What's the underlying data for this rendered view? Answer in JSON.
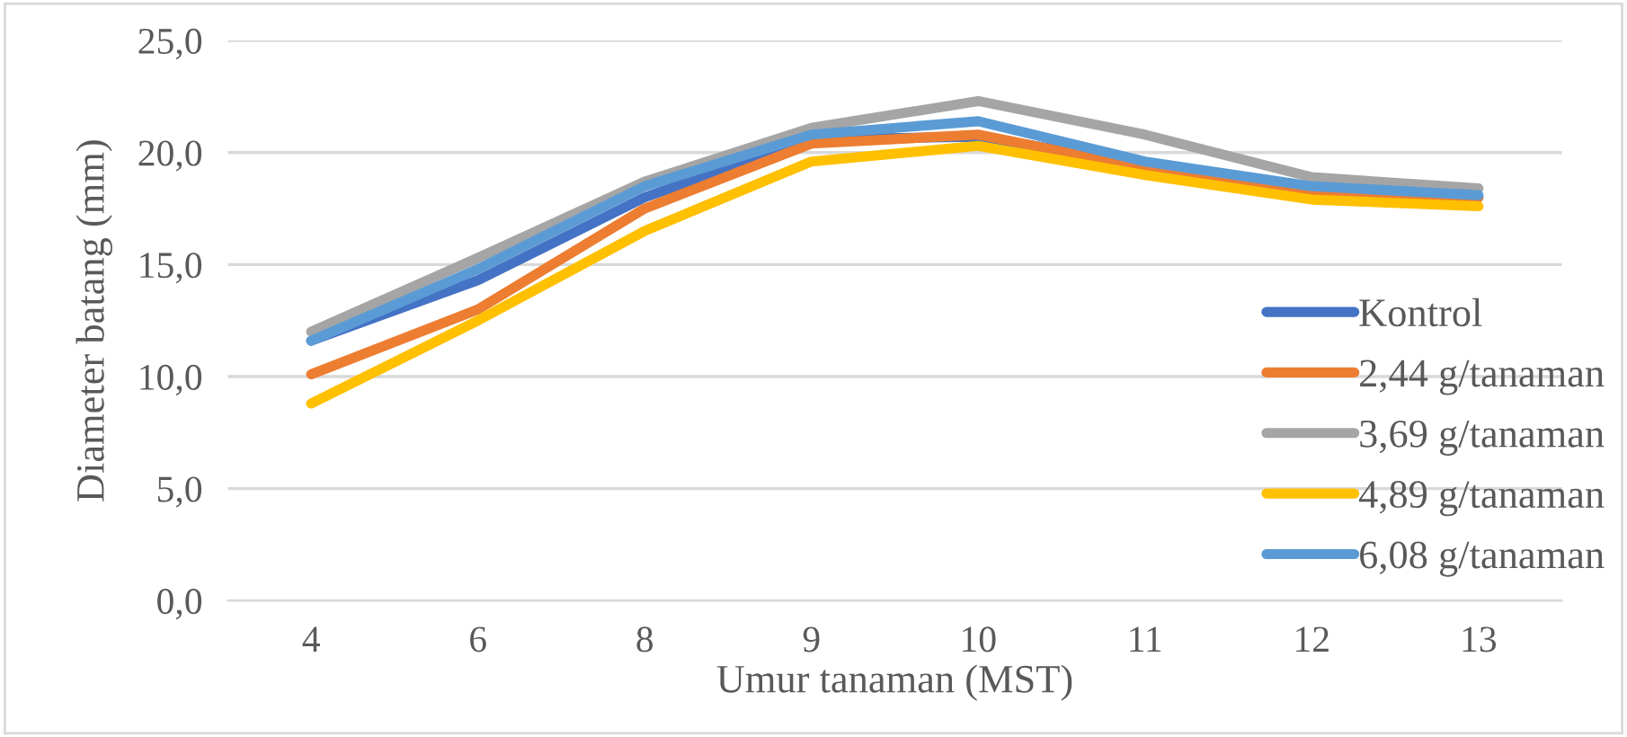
{
  "chart_data": {
    "type": "line",
    "xlabel": "Umur tanaman (MST)",
    "ylabel": "Diameter batang (mm)",
    "categories": [
      "4",
      "6",
      "8",
      "9",
      "10",
      "11",
      "12",
      "13"
    ],
    "series": [
      {
        "name": "Kontrol",
        "color": "#4472c4",
        "values": [
          11.6,
          14.3,
          18.0,
          20.6,
          20.7,
          19.5,
          18.3,
          18.0
        ]
      },
      {
        "name": "2,44 g/tanaman",
        "color": "#ed7d31",
        "values": [
          10.1,
          13.0,
          17.5,
          20.4,
          20.8,
          19.3,
          18.3,
          18.0
        ]
      },
      {
        "name": "3,69 g/tanaman",
        "color": "#a5a5a5",
        "values": [
          12.0,
          15.3,
          18.7,
          21.1,
          22.3,
          20.8,
          18.9,
          18.4
        ]
      },
      {
        "name": "4,89 g/tanaman",
        "color": "#ffc000",
        "values": [
          8.8,
          12.5,
          16.5,
          19.6,
          20.3,
          19.0,
          17.9,
          17.6
        ]
      },
      {
        "name": "6,08 g/tanaman",
        "color": "#5b9bd5",
        "values": [
          11.6,
          14.8,
          18.5,
          20.8,
          21.4,
          19.6,
          18.5,
          18.1
        ]
      }
    ],
    "ylim": [
      0,
      25
    ],
    "yticks": [
      {
        "value": 0,
        "label": "0,0"
      },
      {
        "value": 5,
        "label": "5,0"
      },
      {
        "value": 10,
        "label": "10,0"
      },
      {
        "value": 15,
        "label": "15,0"
      },
      {
        "value": 20,
        "label": "20,0"
      },
      {
        "value": 25,
        "label": "25,0"
      }
    ],
    "grid": "y",
    "legend": "right",
    "marker": "none",
    "line_style": "solid"
  }
}
